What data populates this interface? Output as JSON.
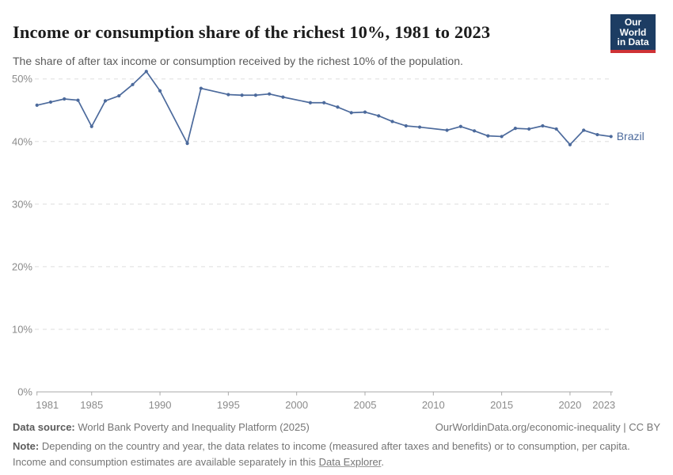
{
  "header": {
    "title": "Income or consumption share of the richest 10%, 1981 to 2023",
    "subtitle": "The share of after tax income or consumption received by the richest 10% of the population.",
    "logo_line1": "Our World",
    "logo_line2": "in Data"
  },
  "chart_data": {
    "type": "line",
    "title": "Income or consumption share of the richest 10%, 1981 to 2023",
    "xlabel": "",
    "ylabel": "",
    "x_range": [
      1981,
      2023
    ],
    "ylim": [
      0,
      52
    ],
    "y_ticks": [
      0,
      10,
      20,
      30,
      40,
      50
    ],
    "y_tick_suffix": "%",
    "x_ticks": [
      1981,
      1985,
      1990,
      1995,
      2000,
      2005,
      2010,
      2015,
      2020,
      2023
    ],
    "grid": "horizontal-dashed",
    "legend_position": "line-end-label",
    "series": [
      {
        "name": "Brazil",
        "color": "#4c6a9c",
        "points": [
          [
            1981,
            45.8
          ],
          [
            1982,
            46.3
          ],
          [
            1983,
            46.8
          ],
          [
            1984,
            46.6
          ],
          [
            1985,
            42.4
          ],
          [
            1986,
            46.5
          ],
          [
            1987,
            47.3
          ],
          [
            1988,
            49.1
          ],
          [
            1989,
            51.2
          ],
          [
            1990,
            48.1
          ],
          [
            1992,
            39.7
          ],
          [
            1993,
            48.5
          ],
          [
            1995,
            47.5
          ],
          [
            1996,
            47.4
          ],
          [
            1997,
            47.4
          ],
          [
            1998,
            47.6
          ],
          [
            1999,
            47.1
          ],
          [
            2001,
            46.2
          ],
          [
            2002,
            46.2
          ],
          [
            2003,
            45.5
          ],
          [
            2004,
            44.6
          ],
          [
            2005,
            44.7
          ],
          [
            2006,
            44.1
          ],
          [
            2007,
            43.2
          ],
          [
            2008,
            42.5
          ],
          [
            2009,
            42.3
          ],
          [
            2011,
            41.8
          ],
          [
            2012,
            42.4
          ],
          [
            2013,
            41.7
          ],
          [
            2014,
            40.9
          ],
          [
            2015,
            40.8
          ],
          [
            2016,
            42.1
          ],
          [
            2017,
            42.0
          ],
          [
            2018,
            42.5
          ],
          [
            2019,
            42.0
          ],
          [
            2020,
            39.5
          ],
          [
            2021,
            41.8
          ],
          [
            2022,
            41.1
          ],
          [
            2023,
            40.8
          ]
        ]
      }
    ]
  },
  "footer": {
    "datasource_label": "Data source:",
    "datasource_text": " World Bank Poverty and Inequality Platform (2025)",
    "license": "OurWorldinData.org/economic-inequality | CC BY",
    "note_label": "Note:",
    "note_before_link": " Depending on the country and year, the data relates to income (measured after taxes and benefits) or to consumption, per capita. Income and consumption estimates are available separately in this ",
    "note_link": "Data Explorer",
    "note_after_link": "."
  },
  "colors": {
    "line": "#4c6a9c",
    "grid": "#dddddd",
    "axis": "#a8a8a8",
    "tick_text": "#8b8b8b",
    "logo_bg": "#1d3d63",
    "logo_accent": "#cf3235"
  }
}
